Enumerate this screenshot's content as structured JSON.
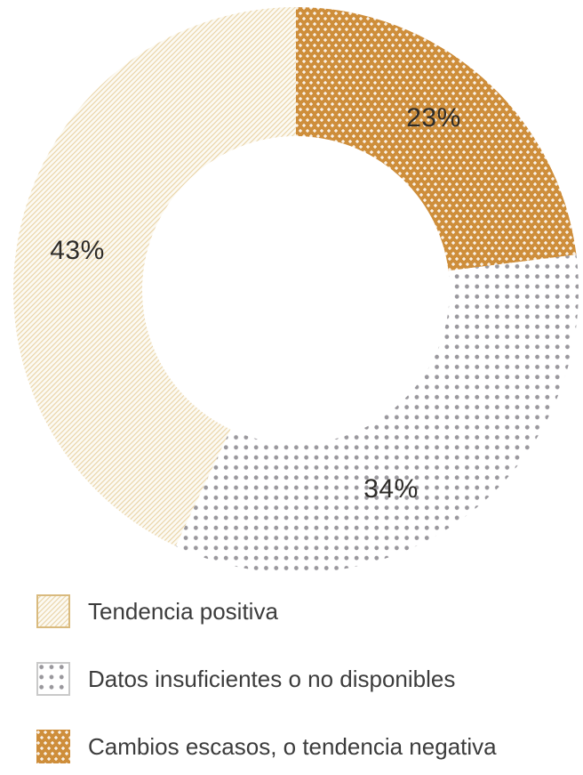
{
  "chart_data": {
    "type": "pie",
    "subtype": "donut",
    "title": "",
    "unit": "%",
    "start_angle_deg": 0,
    "direction": "clockwise",
    "legend_position": "bottom-left",
    "segments": [
      {
        "name": "Cambios escasos, o tendencia negativa",
        "value": 23,
        "data_label": "23%",
        "pattern": "orange-dots",
        "pattern_style": "white plus-shaped dots on orange",
        "base_color": "#CE8E3B",
        "dot_color": "#FFFFFF"
      },
      {
        "name": "Datos insuficientes o no disponibles",
        "value": 34,
        "data_label": "34%",
        "pattern": "gray-dots",
        "pattern_style": "gray dots on white",
        "base_color": "#FFFFFF",
        "dot_color": "#9A989D"
      },
      {
        "name": "Tendencia positiva",
        "value": 43,
        "data_label": "43%",
        "pattern": "hatch",
        "pattern_style": "tan diagonal hatch lines on cream",
        "base_color": "#FCFAF3",
        "line_color": "#E9D3A6"
      }
    ]
  },
  "legend": {
    "items": [
      {
        "label": "Tendencia positiva",
        "pattern": "hatch",
        "border": "#D9BA7E"
      },
      {
        "label": "Datos insuficientes o no disponibles",
        "pattern": "gray-dots",
        "border": "#C9C9C9"
      },
      {
        "label": "Cambios escasos, o tendencia negativa",
        "pattern": "orange-dots",
        "border": "none"
      }
    ]
  },
  "colors": {
    "data_label_text": "#2E2C29",
    "legend_text": "#3C3C3C",
    "background": "#FFFFFF"
  }
}
